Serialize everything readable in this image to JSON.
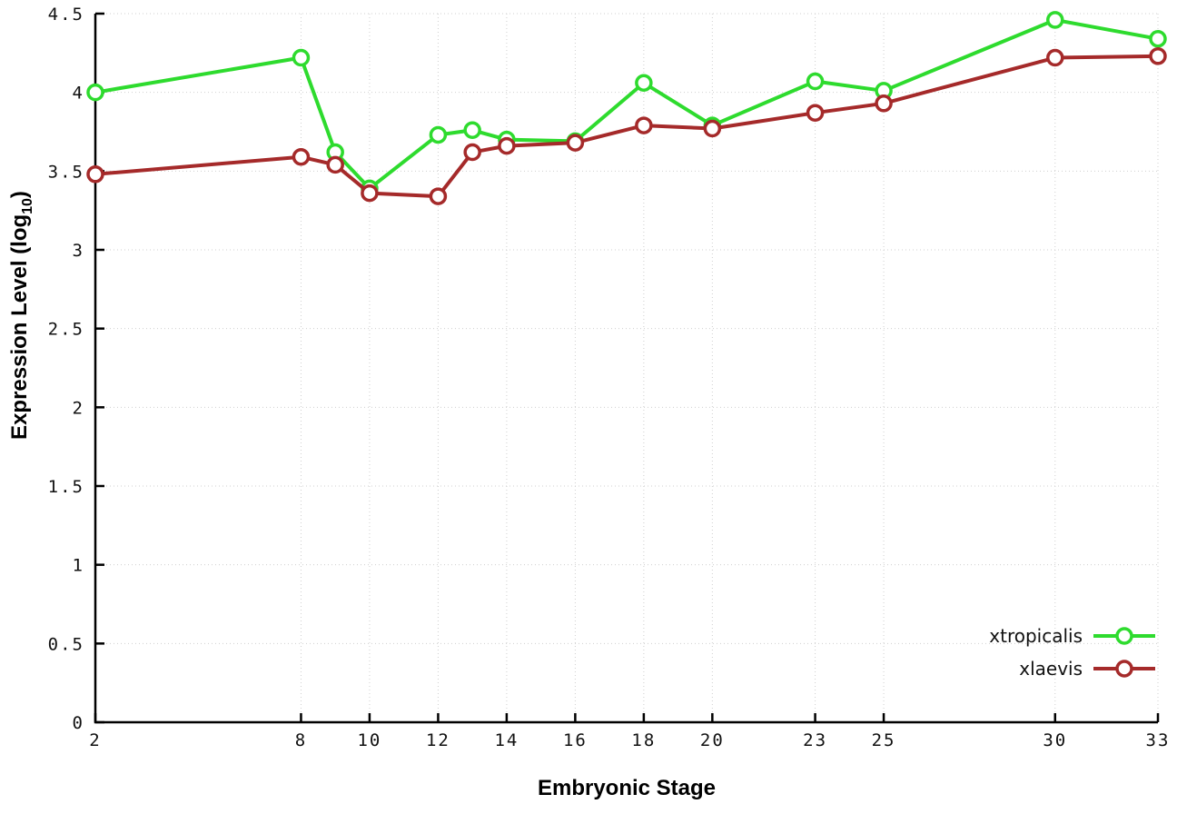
{
  "figure": {
    "background": "#ffffff",
    "xlabel": "Embryonic Stage",
    "ylabel_prefix": "Expression Level (log",
    "ylabel_subscript": "10",
    "ylabel_suffix": ")"
  },
  "chart_data": {
    "type": "line",
    "title": "",
    "xlabel": "Embryonic Stage",
    "ylabel": "Expression Level (log10)",
    "grid": true,
    "legend_position": "bottom-right",
    "x_range": [
      2,
      33
    ],
    "y_range": [
      0,
      4.5
    ],
    "x_ticks": [
      2,
      8,
      10,
      12,
      14,
      16,
      18,
      20,
      23,
      25,
      30,
      33
    ],
    "y_ticks": [
      0,
      0.5,
      1,
      1.5,
      2,
      2.5,
      3,
      3.5,
      4,
      4.5
    ],
    "x": [
      2,
      8,
      9,
      10,
      12,
      13,
      14,
      16,
      18,
      20,
      23,
      25,
      30,
      33
    ],
    "series": [
      {
        "name": "xtropicalis",
        "color": "#2edb2e",
        "marker": "open-circle",
        "values": [
          4.0,
          4.22,
          3.62,
          3.39,
          3.73,
          3.76,
          3.7,
          3.69,
          4.06,
          3.79,
          4.07,
          4.01,
          4.46,
          4.34
        ]
      },
      {
        "name": "xlaevis",
        "color": "#a52a2a",
        "marker": "open-circle",
        "values": [
          3.48,
          3.59,
          3.54,
          3.36,
          3.34,
          3.62,
          3.66,
          3.68,
          3.79,
          3.77,
          3.87,
          3.93,
          4.22,
          4.23
        ]
      }
    ]
  }
}
